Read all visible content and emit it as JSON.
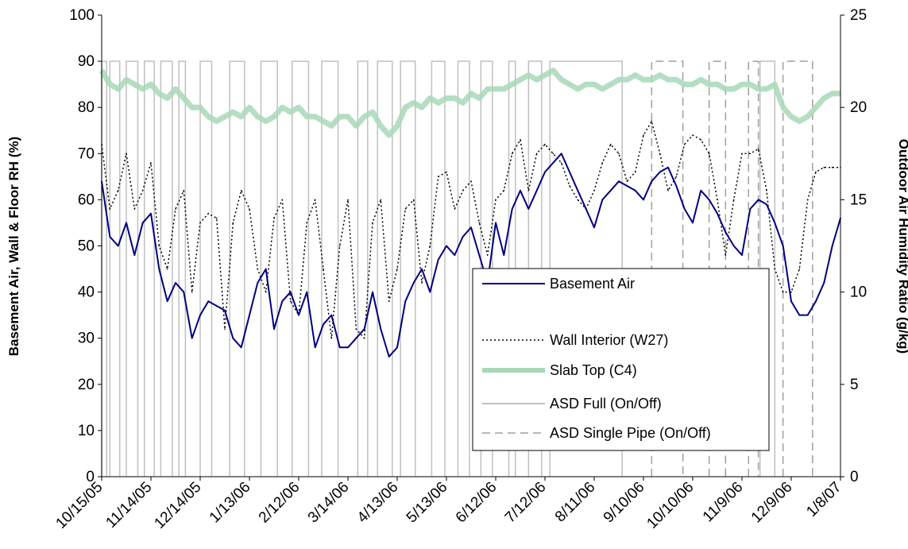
{
  "chart_data": {
    "type": "line",
    "title": "",
    "ylabel": "Basement Air, Wall & Floor RH (%)",
    "y2label": "Outdoor Air Humidity Ratio (g/kg)",
    "xlabel": "",
    "ylim": [
      0,
      100
    ],
    "y2lim": [
      0,
      25
    ],
    "yticks": [
      "0",
      "10",
      "20",
      "30",
      "40",
      "50",
      "60",
      "70",
      "80",
      "90",
      "100"
    ],
    "y2ticks": [
      "0",
      "5",
      "10",
      "15",
      "20",
      "25"
    ],
    "xticks": [
      "10/15/05",
      "11/14/05",
      "12/14/05",
      "1/13/06",
      "2/12/06",
      "3/14/06",
      "4/13/06",
      "5/13/06",
      "6/12/06",
      "7/12/06",
      "8/11/06",
      "9/10/06",
      "10/10/06",
      "11/9/06",
      "12/9/06",
      "1/8/07"
    ],
    "xlim_days": [
      0,
      450
    ],
    "grid": false,
    "legend_position": "center-right",
    "series": [
      {
        "name": "Basement Air",
        "color": "#000080",
        "style": "solid",
        "x": [
          "10/15/05",
          "10/20/05",
          "10/25/05",
          "10/30/05",
          "11/4/05",
          "11/9/05",
          "11/14/05",
          "11/19/05",
          "11/24/05",
          "11/29/05",
          "12/4/05",
          "12/9/05",
          "12/14/05",
          "12/19/05",
          "12/24/05",
          "12/29/05",
          "1/3/06",
          "1/8/06",
          "1/13/06",
          "1/18/06",
          "1/23/06",
          "1/28/06",
          "2/2/06",
          "2/7/06",
          "2/12/06",
          "2/17/06",
          "2/22/06",
          "2/27/06",
          "3/4/06",
          "3/9/06",
          "3/14/06",
          "3/19/06",
          "3/24/06",
          "3/29/06",
          "4/3/06",
          "4/8/06",
          "4/13/06",
          "4/18/06",
          "4/23/06",
          "4/28/06",
          "5/3/06",
          "5/8/06",
          "5/13/06",
          "5/18/06",
          "5/23/06",
          "5/28/06",
          "6/2/06",
          "6/7/06",
          "6/12/06",
          "6/17/06",
          "6/22/06",
          "6/27/06",
          "7/2/06",
          "7/7/06",
          "7/12/06",
          "7/17/06",
          "7/22/06",
          "7/27/06",
          "8/1/06",
          "8/6/06",
          "8/11/06",
          "8/16/06",
          "8/21/06",
          "8/26/06",
          "8/31/06",
          "9/5/06",
          "9/10/06",
          "9/15/06",
          "9/20/06",
          "9/25/06",
          "9/30/06",
          "10/5/06",
          "10/10/06",
          "10/15/06",
          "10/20/06",
          "10/25/06",
          "10/30/06",
          "11/4/06",
          "11/9/06",
          "11/14/06",
          "11/19/06",
          "11/24/06",
          "11/29/06",
          "12/4/06",
          "12/9/06",
          "12/14/06",
          "12/19/06",
          "12/24/06",
          "12/29/06",
          "1/3/07",
          "1/8/07"
        ],
        "values": [
          64,
          52,
          50,
          55,
          48,
          55,
          57,
          45,
          38,
          42,
          40,
          30,
          35,
          38,
          37,
          36,
          30,
          28,
          35,
          42,
          45,
          32,
          38,
          40,
          35,
          40,
          28,
          33,
          35,
          28,
          28,
          30,
          32,
          40,
          32,
          26,
          28,
          38,
          42,
          45,
          40,
          47,
          50,
          48,
          52,
          54,
          48,
          42,
          55,
          48,
          58,
          62,
          58,
          62,
          66,
          68,
          70,
          66,
          62,
          58,
          54,
          60,
          62,
          64,
          63,
          62,
          60,
          64,
          66,
          67,
          63,
          58,
          55,
          62,
          60,
          57,
          53,
          50,
          48,
          58,
          60,
          59,
          55,
          50,
          38,
          35,
          35,
          38,
          42,
          50,
          56
        ]
      },
      {
        "name": "Wall Interior (W27)",
        "color": "#000000",
        "style": "dotted",
        "x": [
          "10/15/05",
          "10/20/05",
          "10/25/05",
          "10/30/05",
          "11/4/05",
          "11/9/05",
          "11/14/05",
          "11/19/05",
          "11/24/05",
          "11/29/05",
          "12/4/05",
          "12/9/05",
          "12/14/05",
          "12/19/05",
          "12/24/05",
          "12/29/05",
          "1/3/06",
          "1/8/06",
          "1/13/06",
          "1/18/06",
          "1/23/06",
          "1/28/06",
          "2/2/06",
          "2/7/06",
          "2/12/06",
          "2/17/06",
          "2/22/06",
          "2/27/06",
          "3/4/06",
          "3/9/06",
          "3/14/06",
          "3/19/06",
          "3/24/06",
          "3/29/06",
          "4/3/06",
          "4/8/06",
          "4/13/06",
          "4/18/06",
          "4/23/06",
          "4/28/06",
          "5/3/06",
          "5/8/06",
          "5/13/06",
          "5/18/06",
          "5/23/06",
          "5/28/06",
          "6/2/06",
          "6/7/06",
          "6/12/06",
          "6/17/06",
          "6/22/06",
          "6/27/06",
          "7/2/06",
          "7/7/06",
          "7/12/06",
          "7/17/06",
          "7/22/06",
          "7/27/06",
          "8/1/06",
          "8/6/06",
          "8/11/06",
          "8/16/06",
          "8/21/06",
          "8/26/06",
          "8/31/06",
          "9/5/06",
          "9/10/06",
          "9/15/06",
          "9/20/06",
          "9/25/06",
          "9/30/06",
          "10/5/06",
          "10/10/06",
          "10/15/06",
          "10/20/06",
          "10/25/06",
          "10/30/06",
          "11/4/06",
          "11/9/06",
          "11/14/06",
          "11/19/06",
          "11/24/06",
          "11/29/06",
          "12/4/06",
          "12/9/06",
          "12/14/06",
          "12/19/06",
          "12/24/06",
          "12/29/06",
          "1/3/07",
          "1/8/07"
        ],
        "values": [
          72,
          58,
          62,
          70,
          58,
          62,
          68,
          50,
          45,
          58,
          62,
          40,
          55,
          57,
          56,
          32,
          55,
          62,
          58,
          45,
          40,
          56,
          60,
          38,
          35,
          55,
          60,
          45,
          30,
          50,
          60,
          32,
          30,
          55,
          60,
          38,
          45,
          58,
          60,
          42,
          50,
          65,
          66,
          58,
          62,
          64,
          55,
          48,
          60,
          62,
          70,
          73,
          62,
          70,
          72,
          70,
          68,
          63,
          60,
          58,
          62,
          68,
          72,
          70,
          64,
          66,
          74,
          77,
          70,
          62,
          65,
          72,
          74,
          73,
          70,
          60,
          48,
          60,
          70,
          70,
          71,
          62,
          45,
          40,
          40,
          45,
          60,
          66,
          67,
          67,
          67
        ]
      },
      {
        "name": "Slab Top (C4)",
        "color": "#a8d8b8",
        "style": "thick",
        "x": [
          "10/15/05",
          "10/20/05",
          "10/25/05",
          "10/30/05",
          "11/4/05",
          "11/9/05",
          "11/14/05",
          "11/19/05",
          "11/24/05",
          "11/29/05",
          "12/4/05",
          "12/9/05",
          "12/14/05",
          "12/19/05",
          "12/24/05",
          "12/29/05",
          "1/3/06",
          "1/8/06",
          "1/13/06",
          "1/18/06",
          "1/23/06",
          "1/28/06",
          "2/2/06",
          "2/7/06",
          "2/12/06",
          "2/17/06",
          "2/22/06",
          "2/27/06",
          "3/4/06",
          "3/9/06",
          "3/14/06",
          "3/19/06",
          "3/24/06",
          "3/29/06",
          "4/3/06",
          "4/8/06",
          "4/13/06",
          "4/18/06",
          "4/23/06",
          "4/28/06",
          "5/3/06",
          "5/8/06",
          "5/13/06",
          "5/18/06",
          "5/23/06",
          "5/28/06",
          "6/2/06",
          "6/7/06",
          "6/12/06",
          "6/17/06",
          "6/22/06",
          "6/27/06",
          "7/2/06",
          "7/7/06",
          "7/12/06",
          "7/17/06",
          "7/22/06",
          "7/27/06",
          "8/1/06",
          "8/6/06",
          "8/11/06",
          "8/16/06",
          "8/21/06",
          "8/26/06",
          "8/31/06",
          "9/5/06",
          "9/10/06",
          "9/15/06",
          "9/20/06",
          "9/25/06",
          "9/30/06",
          "10/5/06",
          "10/10/06",
          "10/15/06",
          "10/20/06",
          "10/25/06",
          "10/30/06",
          "11/4/06",
          "11/9/06",
          "11/14/06",
          "11/19/06",
          "11/24/06",
          "11/29/06",
          "12/4/06",
          "12/9/06",
          "12/14/06",
          "12/19/06",
          "12/24/06",
          "12/29/06",
          "1/3/07",
          "1/8/07"
        ],
        "values": [
          88,
          85,
          84,
          86,
          85,
          84,
          85,
          83,
          82,
          84,
          82,
          80,
          80,
          78,
          77,
          78,
          79,
          78,
          80,
          78,
          77,
          78,
          80,
          79,
          80,
          78,
          78,
          77,
          76,
          78,
          78,
          76,
          78,
          79,
          76,
          74,
          76,
          80,
          81,
          80,
          82,
          81,
          82,
          82,
          81,
          83,
          82,
          84,
          84,
          84,
          85,
          86,
          87,
          86,
          87,
          88,
          86,
          85,
          84,
          85,
          85,
          84,
          85,
          86,
          86,
          87,
          86,
          86,
          87,
          86,
          86,
          85,
          85,
          86,
          85,
          85,
          84,
          84,
          85,
          85,
          84,
          84,
          85,
          80,
          78,
          77,
          78,
          80,
          82,
          83,
          83
        ]
      },
      {
        "name": "ASD Full (On/Off)",
        "color": "#c0c0c0",
        "style": "solid",
        "on_intervals": [
          [
            "10/15/05",
            "10/18/05"
          ],
          [
            "10/20/05",
            "10/26/05"
          ],
          [
            "10/30/05",
            "11/6/05"
          ],
          [
            "11/10/05",
            "11/16/05"
          ],
          [
            "11/20/05",
            "11/27/05"
          ],
          [
            "12/1/05",
            "12/5/05"
          ],
          [
            "12/14/05",
            "12/21/05"
          ],
          [
            "1/1/06",
            "1/10/06"
          ],
          [
            "1/20/06",
            "1/30/06"
          ],
          [
            "2/8/06",
            "2/18/06"
          ],
          [
            "2/26/06",
            "3/8/06"
          ],
          [
            "3/20/06",
            "3/26/06"
          ],
          [
            "4/1/06",
            "4/10/06"
          ],
          [
            "4/15/06",
            "4/24/06"
          ],
          [
            "5/4/06",
            "5/12/06"
          ],
          [
            "5/20/06",
            "5/27/06"
          ],
          [
            "6/3/06",
            "6/10/06"
          ],
          [
            "6/20/06",
            "6/24/06"
          ],
          [
            "7/2/06",
            "7/10/06"
          ],
          [
            "7/15/06",
            "8/28/06"
          ],
          [
            "11/20/06",
            "11/29/06"
          ]
        ]
      },
      {
        "name": "ASD Single Pipe (On/Off)",
        "color": "#a0a0a0",
        "style": "dashed",
        "on_intervals": [
          [
            "9/15/06",
            "10/4/06"
          ],
          [
            "10/20/06",
            "10/30/06"
          ],
          [
            "11/13/06",
            "11/19/06"
          ],
          [
            "12/4/06",
            "12/22/06"
          ]
        ]
      }
    ]
  },
  "legend": {
    "items": [
      {
        "label": "Basement Air"
      },
      {
        "label": "Wall Interior (W27)"
      },
      {
        "label": "Slab Top (C4)"
      },
      {
        "label": "ASD Full (On/Off)"
      },
      {
        "label": "ASD Single Pipe (On/Off)"
      }
    ]
  }
}
